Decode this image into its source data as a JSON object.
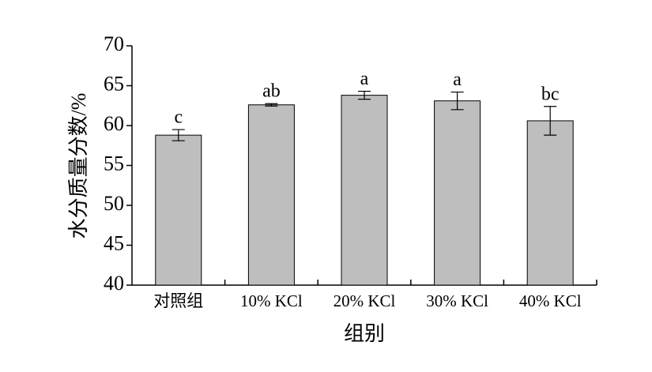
{
  "chart_data": {
    "type": "bar",
    "ylabel": "水分质量分数/%",
    "xlabel": "组别",
    "categories": [
      "对照组",
      "10% KCl",
      "20% KCl",
      "30% KCl",
      "40% KCl"
    ],
    "values": [
      58.8,
      62.6,
      63.8,
      63.1,
      60.6
    ],
    "errors": [
      0.7,
      0.15,
      0.5,
      1.1,
      1.8
    ],
    "annotations": [
      "c",
      "ab",
      "a",
      "a",
      "bc"
    ],
    "color": "#bebebe",
    "ylim": [
      40,
      70
    ],
    "yticks": [
      40,
      45,
      50,
      55,
      60,
      65,
      70
    ]
  }
}
